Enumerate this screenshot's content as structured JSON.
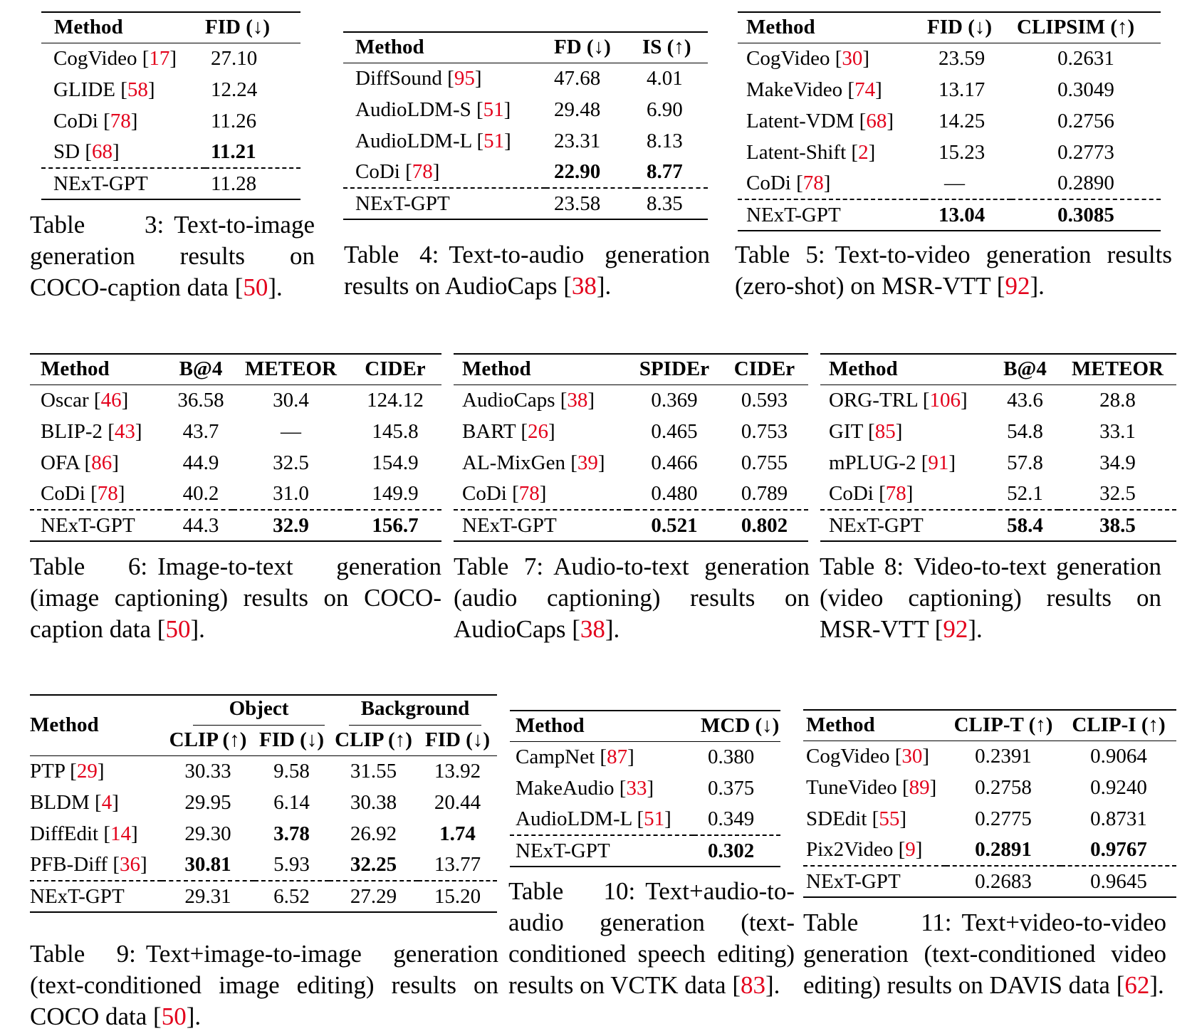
{
  "t3": {
    "headers": [
      "Method",
      "FID (↓)"
    ],
    "rows": [
      {
        "m": "CogVideo",
        "r": "17",
        "v": "27.10"
      },
      {
        "m": "GLIDE",
        "r": "58",
        "v": "12.24"
      },
      {
        "m": "CoDi",
        "r": "78",
        "v": "11.26"
      },
      {
        "m": "SD",
        "r": "68",
        "v": "11.21"
      }
    ],
    "ours": {
      "m": "NExT-GPT",
      "v": "11.28"
    },
    "caption": {
      "label": "Table 3:",
      "text": "Text-to-image generation results on COCO-caption data [",
      "ref": "50",
      "end": "]."
    }
  },
  "t4": {
    "headers": [
      "Method",
      "FD (↓)",
      "IS (↑)"
    ],
    "rows": [
      {
        "m": "DiffSound",
        "r": "95",
        "a": "47.68",
        "b": "4.01"
      },
      {
        "m": "AudioLDM-S",
        "r": "51",
        "a": "29.48",
        "b": "6.90"
      },
      {
        "m": "AudioLDM-L",
        "r": "51",
        "a": "23.31",
        "b": "8.13"
      },
      {
        "m": "CoDi",
        "r": "78",
        "a": "22.90",
        "b": "8.77"
      }
    ],
    "ours": {
      "m": "NExT-GPT",
      "a": "23.58",
      "b": "8.35"
    },
    "caption": {
      "label": "Table 4:",
      "text": "Text-to-audio generation results on AudioCaps [",
      "ref": "38",
      "end": "]."
    }
  },
  "t5": {
    "headers": [
      "Method",
      "FID (↓)",
      "CLIPSIM (↑)"
    ],
    "rows": [
      {
        "m": "CogVideo",
        "r": "30",
        "a": "23.59",
        "b": "0.2631"
      },
      {
        "m": "MakeVideo",
        "r": "74",
        "a": "13.17",
        "b": "0.3049"
      },
      {
        "m": "Latent-VDM",
        "r": "68",
        "a": "14.25",
        "b": "0.2756"
      },
      {
        "m": "Latent-Shift",
        "r": "2",
        "a": "15.23",
        "b": "0.2773"
      },
      {
        "m": "CoDi",
        "r": "78",
        "a": "—",
        "b": "0.2890"
      }
    ],
    "ours": {
      "m": "NExT-GPT",
      "a": "13.04",
      "b": "0.3085"
    },
    "caption": {
      "label": "Table 5:",
      "text": "Text-to-video generation results (zero-shot) on MSR-VTT [",
      "ref": "92",
      "end": "]."
    }
  },
  "t6": {
    "headers": [
      "Method",
      "B@4",
      "METEOR",
      "CIDEr"
    ],
    "rows": [
      {
        "m": "Oscar",
        "r": "46",
        "a": "36.58",
        "b": "30.4",
        "c": "124.12"
      },
      {
        "m": "BLIP-2",
        "r": "43",
        "a": "43.7",
        "b": "—",
        "c": "145.8"
      },
      {
        "m": "OFA",
        "r": "86",
        "a": "44.9",
        "b": "32.5",
        "c": "154.9"
      },
      {
        "m": "CoDi",
        "r": "78",
        "a": "40.2",
        "b": "31.0",
        "c": "149.9"
      }
    ],
    "ours": {
      "m": "NExT-GPT",
      "a": "44.3",
      "b": "32.9",
      "c": "156.7"
    },
    "caption": {
      "label": "Table 6:",
      "text": "Image-to-text generation (image captioning) results on COCO-caption data [",
      "ref": "50",
      "end": "]."
    }
  },
  "t7": {
    "headers": [
      "Method",
      "SPIDEr",
      "CIDEr"
    ],
    "rows": [
      {
        "m": "AudioCaps",
        "r": "38",
        "a": "0.369",
        "b": "0.593"
      },
      {
        "m": "BART",
        "r": "26",
        "a": "0.465",
        "b": "0.753"
      },
      {
        "m": "AL-MixGen",
        "r": "39",
        "a": "0.466",
        "b": "0.755"
      },
      {
        "m": "CoDi",
        "r": "78",
        "a": "0.480",
        "b": "0.789"
      }
    ],
    "ours": {
      "m": "NExT-GPT",
      "a": "0.521",
      "b": "0.802"
    },
    "caption": {
      "label": "Table 7:",
      "text": "Audio-to-text generation (audio captioning) results on AudioCaps [",
      "ref": "38",
      "end": "]."
    }
  },
  "t8": {
    "headers": [
      "Method",
      "B@4",
      "METEOR"
    ],
    "rows": [
      {
        "m": "ORG-TRL",
        "r": "106",
        "a": "43.6",
        "b": "28.8"
      },
      {
        "m": "GIT",
        "r": "85",
        "a": "54.8",
        "b": "33.1"
      },
      {
        "m": "mPLUG-2",
        "r": "91",
        "a": "57.8",
        "b": "34.9"
      },
      {
        "m": "CoDi",
        "r": "78",
        "a": "52.1",
        "b": "32.5"
      }
    ],
    "ours": {
      "m": "NExT-GPT",
      "a": "58.4",
      "b": "38.5"
    },
    "caption": {
      "label": "Table 8:",
      "text": "Video-to-text generation (video captioning) results on MSR-VTT [",
      "ref": "92",
      "end": "]."
    }
  },
  "t9": {
    "method": "Method",
    "groups": [
      "Object",
      "Background"
    ],
    "subs": [
      "CLIP (↑)",
      "FID (↓)",
      "CLIP (↑)",
      "FID (↓)"
    ],
    "rows": [
      {
        "m": "PTP",
        "r": "29",
        "a": "30.33",
        "b": "9.58",
        "c": "31.55",
        "d": "13.92"
      },
      {
        "m": "BLDM",
        "r": "4",
        "a": "29.95",
        "b": "6.14",
        "c": "30.38",
        "d": "20.44"
      },
      {
        "m": "DiffEdit",
        "r": "14",
        "a": "29.30",
        "b": "3.78",
        "c": "26.92",
        "d": "1.74"
      },
      {
        "m": "PFB-Diff",
        "r": "36",
        "a": "30.81",
        "b": "5.93",
        "c": "32.25",
        "d": "13.77"
      }
    ],
    "ours": {
      "m": "NExT-GPT",
      "a": "29.31",
      "b": "6.52",
      "c": "27.29",
      "d": "15.20"
    },
    "caption": {
      "label": "Table 9:",
      "text": "Text+image-to-image generation (text-conditioned image editing) results on COCO data [",
      "ref": "50",
      "end": "]."
    }
  },
  "t10": {
    "headers": [
      "Method",
      "MCD (↓)"
    ],
    "rows": [
      {
        "m": "CampNet",
        "r": "87",
        "v": "0.380"
      },
      {
        "m": "MakeAudio",
        "r": "33",
        "v": "0.375"
      },
      {
        "m": "AudioLDM-L",
        "r": "51",
        "v": "0.349"
      }
    ],
    "ours": {
      "m": "NExT-GPT",
      "v": "0.302"
    },
    "caption": {
      "label": "Table 10:",
      "text": "Text+audio-to-audio generation (text-conditioned speech editing) results on VCTK data [",
      "ref": "83",
      "end": "]."
    }
  },
  "t11": {
    "headers": [
      "Method",
      "CLIP-T (↑)",
      "CLIP-I (↑)"
    ],
    "rows": [
      {
        "m": "CogVideo",
        "r": "30",
        "a": "0.2391",
        "b": "0.9064"
      },
      {
        "m": "TuneVideo",
        "r": "89",
        "a": "0.2758",
        "b": "0.9240"
      },
      {
        "m": "SDEdit",
        "r": "55",
        "a": "0.2775",
        "b": "0.8731"
      },
      {
        "m": "Pix2Video",
        "r": "9",
        "a": "0.2891",
        "b": "0.9767"
      }
    ],
    "ours": {
      "m": "NExT-GPT",
      "a": "0.2683",
      "b": "0.9645"
    },
    "caption": {
      "label": "Table 11:",
      "text": "Text+video-to-video generation (text-conditioned video editing) results on DAVIS data [",
      "ref": "62",
      "end": "]."
    }
  }
}
